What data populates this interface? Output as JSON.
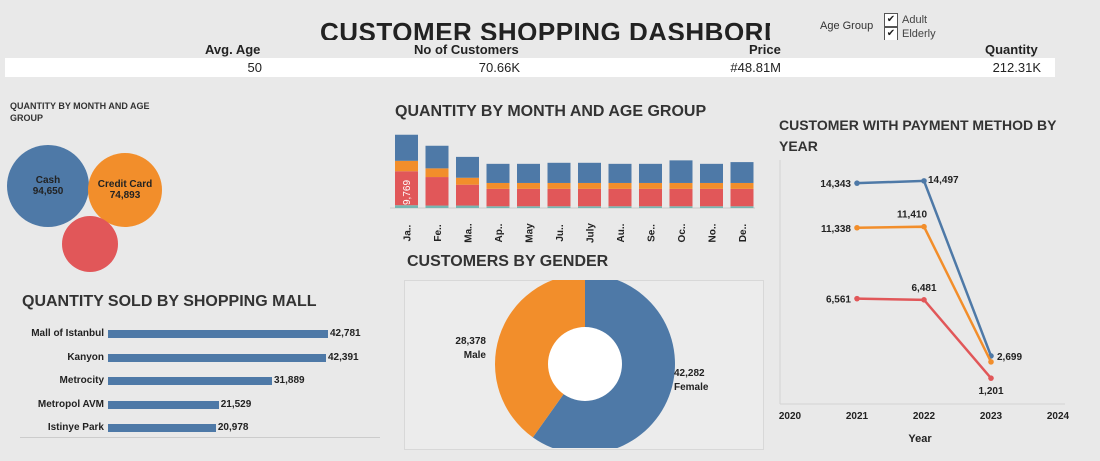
{
  "header": {
    "title": "CUSTOMER SHOPPING DASHBORD",
    "age_group_label": "Age Group",
    "filters": [
      {
        "label": "Adult",
        "checked": true
      },
      {
        "label": "Elderly",
        "checked": true
      }
    ]
  },
  "kpis": {
    "avg_age": {
      "label": "Avg. Age",
      "value": "50"
    },
    "customers": {
      "label": "No of Customers",
      "value": "70.66K"
    },
    "price": {
      "label": "Price",
      "value": "#48.81M"
    },
    "quantity": {
      "label": "Quantity",
      "value": "212.31K"
    }
  },
  "payment_bubbles": {
    "title": "QUANTITY BY MONTH AND AGE GROUP",
    "items": [
      {
        "label": "Cash",
        "value": "94,650",
        "color": "#4e79a7"
      },
      {
        "label": "Credit Card",
        "value": "74,893",
        "color": "#f28e2b"
      },
      {
        "label": "",
        "value": "",
        "color": "#e15759"
      }
    ]
  },
  "mall_chart": {
    "title": "QUANTITY SOLD BY SHOPPING MALL"
  },
  "month_chart": {
    "title": "QUANTITY BY MONTH AND AGE GROUP"
  },
  "gender_chart": {
    "title": "CUSTOMERS BY GENDER"
  },
  "payment_chart": {
    "title": "CUSTOMER WITH PAYMENT METHOD BY YEAR",
    "xlabel": "Year"
  },
  "chart_data": [
    {
      "type": "bar",
      "orientation": "horizontal",
      "title": "QUANTITY SOLD BY SHOPPING MALL",
      "categories": [
        "Mall of Istanbul",
        "Kanyon",
        "Metrocity",
        "Metropol AVM",
        "Istinye Park"
      ],
      "values": [
        42781,
        42391,
        31889,
        21529,
        20978
      ],
      "value_labels": [
        "42,781",
        "42,391",
        "31,889",
        "21,529",
        "20,978"
      ],
      "color": "#4e79a7"
    },
    {
      "type": "bar",
      "stacked": true,
      "title": "QUANTITY BY MONTH AND AGE GROUP",
      "categories": [
        "Ja..",
        "Fe..",
        "Ma..",
        "Ap..",
        "May",
        "Ju..",
        "July",
        "Au..",
        "Se..",
        "Oc..",
        "No..",
        "De.."
      ],
      "series": [
        {
          "color": "#76b7b2",
          "values": [
            800,
            700,
            700,
            500,
            500,
            500,
            500,
            500,
            500,
            500,
            500,
            500
          ]
        },
        {
          "color": "#e15759",
          "values": [
            9769,
            8200,
            6000,
            5000,
            5000,
            5000,
            5000,
            5000,
            5000,
            5000,
            5000,
            5000
          ]
        },
        {
          "color": "#f28e2b",
          "values": [
            3000,
            2500,
            2000,
            1700,
            1700,
            1700,
            1700,
            1700,
            1700,
            1700,
            1700,
            1700
          ]
        },
        {
          "color": "#4e79a7",
          "values": [
            7500,
            6500,
            6000,
            5500,
            5500,
            5800,
            5800,
            5500,
            5500,
            6500,
            5500,
            6000
          ]
        }
      ],
      "data_labels": [
        {
          "category": "Ja..",
          "text": "9,769"
        }
      ],
      "ylim": [
        0,
        22000
      ]
    },
    {
      "type": "pie",
      "donut": true,
      "title": "CUSTOMERS BY GENDER",
      "slices": [
        {
          "label": "Female",
          "value": 42282,
          "value_label": "42,282",
          "color": "#4e79a7"
        },
        {
          "label": "Male",
          "value": 28378,
          "value_label": "28,378",
          "color": "#f28e2b"
        }
      ]
    },
    {
      "type": "line",
      "title": "CUSTOMER WITH PAYMENT METHOD BY YEAR",
      "xlabel": "Year",
      "x": [
        2021,
        2022,
        2023
      ],
      "xlim": [
        2020,
        2024
      ],
      "xticks": [
        "2020",
        "2021",
        "2022",
        "2023",
        "2024"
      ],
      "series": [
        {
          "color": "#4e79a7",
          "values": [
            14343,
            14497,
            2699
          ],
          "labels": [
            "14,343",
            "14,497",
            "2,699"
          ]
        },
        {
          "color": "#f28e2b",
          "values": [
            11338,
            11410,
            2300
          ],
          "labels": [
            "11,338",
            "11,410",
            ""
          ]
        },
        {
          "color": "#e15759",
          "values": [
            6561,
            6481,
            1201
          ],
          "labels": [
            "6,561",
            "6,481",
            "1,201"
          ]
        }
      ],
      "ylim": [
        0,
        15500
      ]
    }
  ]
}
